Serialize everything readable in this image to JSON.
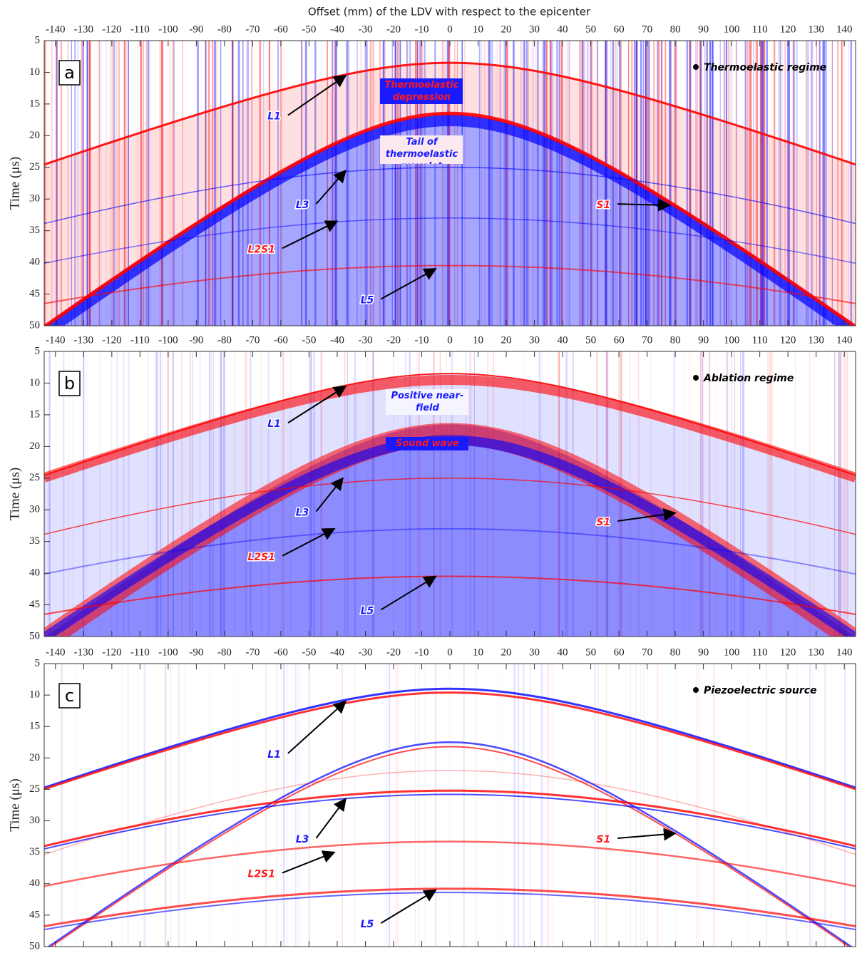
{
  "x_label": "Offset (mm) of the LDV with respect to the epicenter",
  "chart_data": [
    {
      "type": "heatmap",
      "panel_label": "a",
      "regime": "Thermoelastic regime",
      "y_label": "Time (μs)",
      "xlim": [
        -144,
        144
      ],
      "xticks": [
        -140,
        -130,
        -120,
        -110,
        -100,
        -90,
        -80,
        -70,
        -60,
        -50,
        -40,
        -30,
        -20,
        -10,
        0,
        10,
        20,
        30,
        40,
        50,
        60,
        70,
        80,
        90,
        100,
        110,
        120,
        130,
        140
      ],
      "ylim": [
        5,
        50
      ],
      "y_reversed": true,
      "yticks": [
        5,
        10,
        15,
        20,
        25,
        30,
        35,
        40,
        45,
        50
      ],
      "annotations": [
        {
          "text": "Thermoelastic depression",
          "color": "#ff1a1a"
        },
        {
          "text": "Tail of thermoelastic wavelet",
          "color": "#1a1aff"
        },
        {
          "text": "L1",
          "color": "#1a1aff"
        },
        {
          "text": "L3",
          "color": "#1a1aff"
        },
        {
          "text": "S1",
          "color": "#ff1a1a"
        },
        {
          "text": "L2S1",
          "color": "#ff1a1a"
        },
        {
          "text": "L5",
          "color": "#1a1aff"
        }
      ]
    },
    {
      "type": "heatmap",
      "panel_label": "b",
      "regime": "Ablation regime",
      "y_label": "Time (μs)",
      "xlim": [
        -144,
        144
      ],
      "xticks": [
        -140,
        -130,
        -120,
        -110,
        -100,
        -90,
        -80,
        -70,
        -60,
        -50,
        -40,
        -30,
        -20,
        -10,
        0,
        10,
        20,
        30,
        40,
        50,
        60,
        70,
        80,
        90,
        100,
        110,
        120,
        130,
        140
      ],
      "ylim": [
        5,
        50
      ],
      "y_reversed": true,
      "yticks": [
        5,
        10,
        15,
        20,
        25,
        30,
        35,
        40,
        45,
        50
      ],
      "annotations": [
        {
          "text": "Positive near-field",
          "color": "#1a1aff"
        },
        {
          "text": "Sound wave",
          "color": "#ff1a1a"
        },
        {
          "text": "L1",
          "color": "#1a1aff"
        },
        {
          "text": "L3",
          "color": "#1a1aff"
        },
        {
          "text": "S1",
          "color": "#ff1a1a"
        },
        {
          "text": "L2S1",
          "color": "#ff1a1a"
        },
        {
          "text": "L5",
          "color": "#1a1aff"
        }
      ]
    },
    {
      "type": "heatmap",
      "panel_label": "c",
      "regime": "Piezoelectric source",
      "y_label": "Time (μs)",
      "xlim": [
        -144,
        144
      ],
      "xticks": [
        -140,
        -130,
        -120,
        -110,
        -100,
        -90,
        -80,
        -70,
        -60,
        -50,
        -40,
        -30,
        -20,
        -10,
        0,
        10,
        20,
        30,
        40,
        50,
        60,
        70,
        80,
        90,
        100,
        110,
        120,
        130,
        140
      ],
      "ylim": [
        5,
        50
      ],
      "y_reversed": true,
      "yticks": [
        5,
        10,
        15,
        20,
        25,
        30,
        35,
        40,
        45,
        50
      ],
      "annotations": [
        {
          "text": "L1",
          "color": "#1a1aff"
        },
        {
          "text": "L3",
          "color": "#1a1aff"
        },
        {
          "text": "S1",
          "color": "#ff1a1a"
        },
        {
          "text": "L2S1",
          "color": "#ff1a1a"
        },
        {
          "text": "L5",
          "color": "#1a1aff"
        }
      ]
    }
  ]
}
